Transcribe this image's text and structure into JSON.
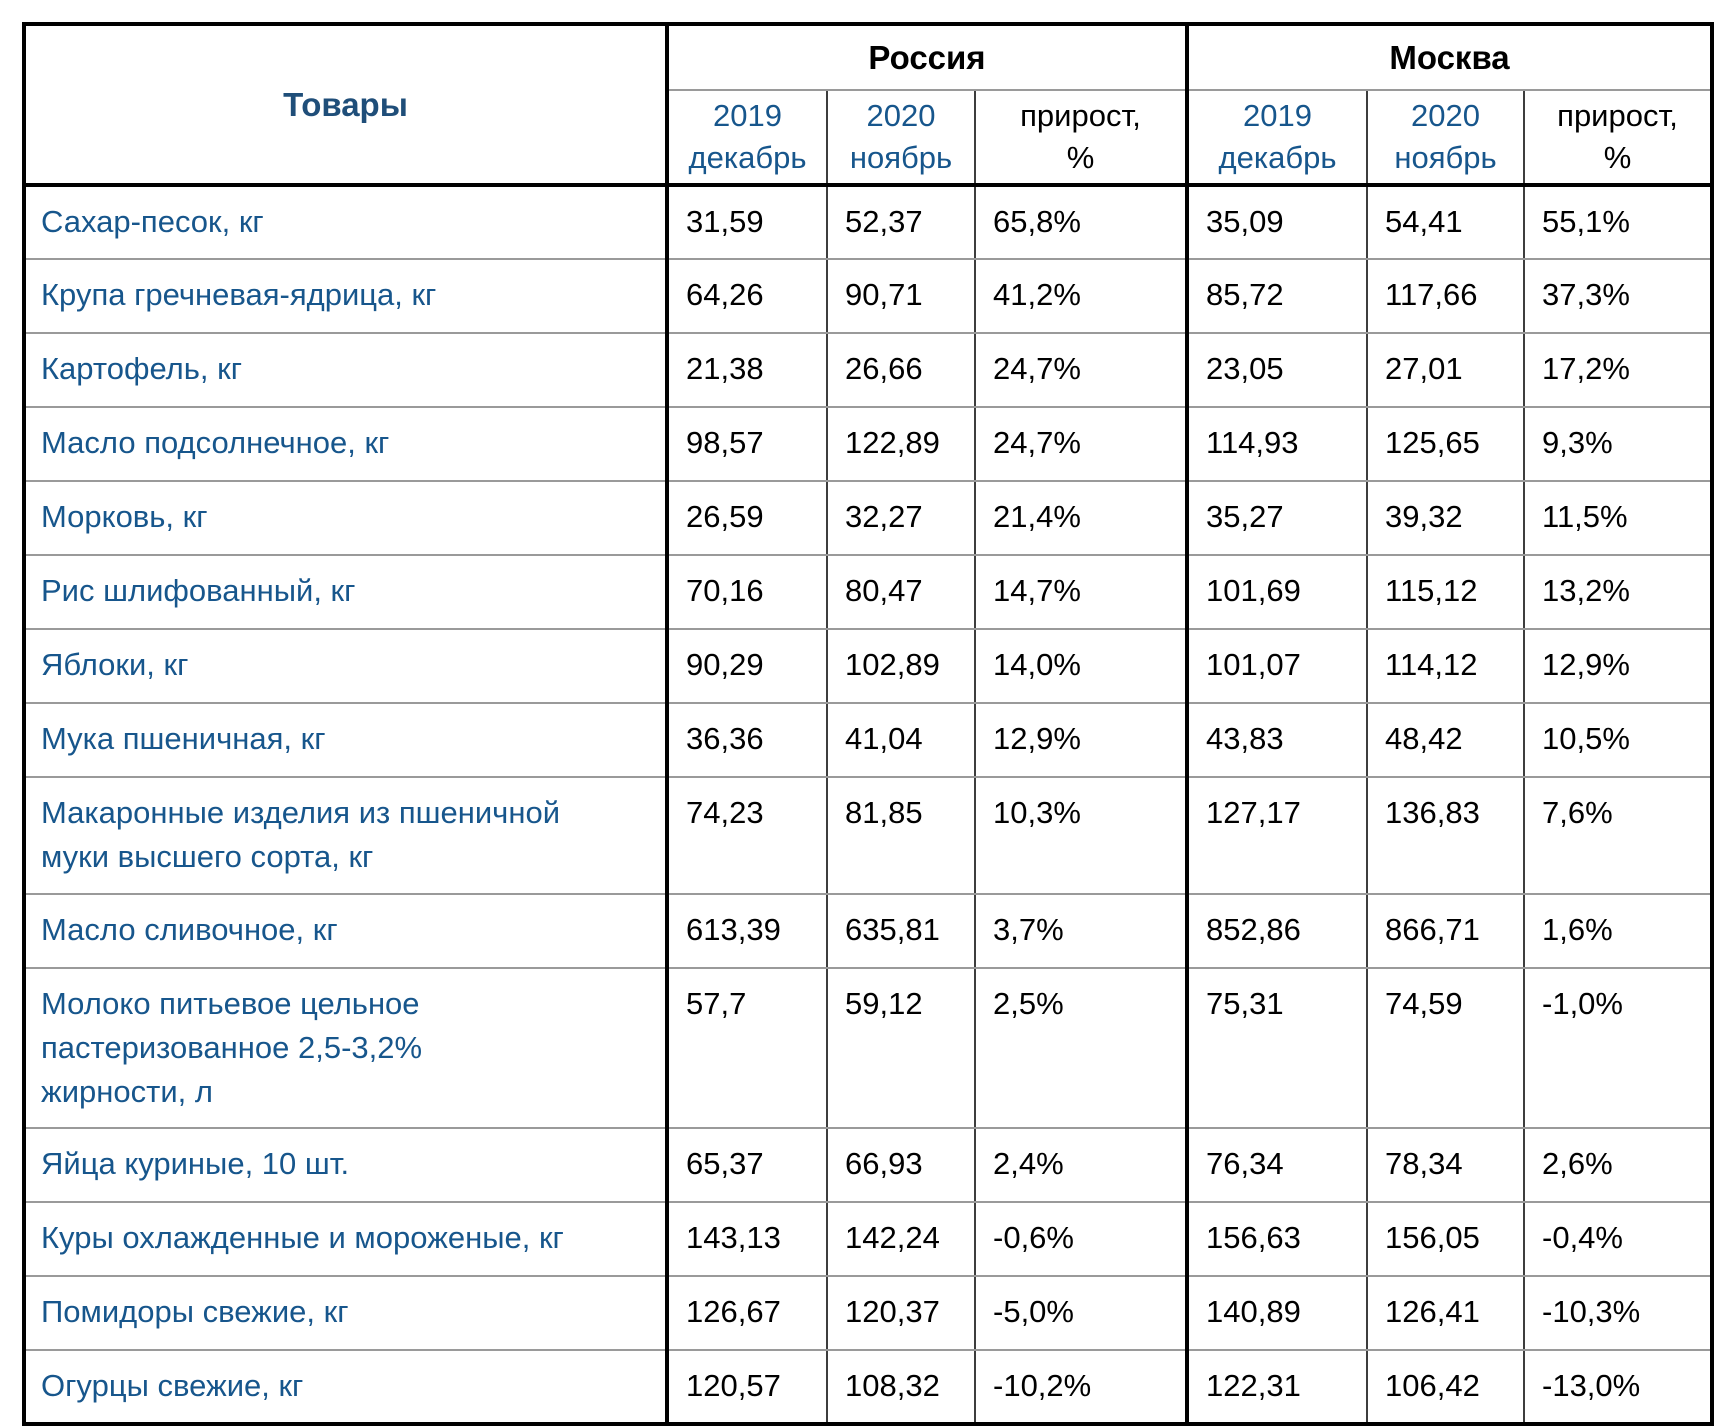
{
  "colors": {
    "title_navy": "#1f4e79",
    "product_blue": "#17568c",
    "year_blue": "#17568c",
    "text_black": "#000000",
    "thick_border": "#000000",
    "thin_border_horizontal": "#9a9a9a",
    "thin_border_vertical": "#3d3d3d",
    "background": "#ffffff"
  },
  "table": {
    "corner_header": "Товары",
    "group_headers": {
      "russia": "Россия",
      "moscow": "Москва"
    },
    "column_headers": {
      "dec2019": "2019\nдекабрь",
      "nov2020": "2020\nноябрь",
      "growth": "прирост,\n%"
    },
    "rows": [
      {
        "name": "Сахар-песок, кг",
        "ru_dec2019": "31,59",
        "ru_nov2020": "52,37",
        "ru_growth": "65,8%",
        "msk_dec2019": "35,09",
        "msk_nov2020": "54,41",
        "msk_growth": "55,1%"
      },
      {
        "name": "Крупа гречневая-ядрица, кг",
        "ru_dec2019": "64,26",
        "ru_nov2020": "90,71",
        "ru_growth": "41,2%",
        "msk_dec2019": "85,72",
        "msk_nov2020": "117,66",
        "msk_growth": "37,3%"
      },
      {
        "name": "Картофель, кг",
        "ru_dec2019": "21,38",
        "ru_nov2020": "26,66",
        "ru_growth": "24,7%",
        "msk_dec2019": "23,05",
        "msk_nov2020": "27,01",
        "msk_growth": "17,2%"
      },
      {
        "name": "Масло подсолнечное, кг",
        "ru_dec2019": "98,57",
        "ru_nov2020": "122,89",
        "ru_growth": "24,7%",
        "msk_dec2019": "114,93",
        "msk_nov2020": "125,65",
        "msk_growth": "9,3%"
      },
      {
        "name": "Морковь, кг",
        "ru_dec2019": "26,59",
        "ru_nov2020": "32,27",
        "ru_growth": "21,4%",
        "msk_dec2019": "35,27",
        "msk_nov2020": "39,32",
        "msk_growth": "11,5%"
      },
      {
        "name": "Рис шлифованный, кг",
        "ru_dec2019": "70,16",
        "ru_nov2020": "80,47",
        "ru_growth": "14,7%",
        "msk_dec2019": "101,69",
        "msk_nov2020": "115,12",
        "msk_growth": "13,2%"
      },
      {
        "name": "Яблоки, кг",
        "ru_dec2019": "90,29",
        "ru_nov2020": "102,89",
        "ru_growth": "14,0%",
        "msk_dec2019": "101,07",
        "msk_nov2020": "114,12",
        "msk_growth": "12,9%"
      },
      {
        "name": "Мука пшеничная, кг",
        "ru_dec2019": "36,36",
        "ru_nov2020": "41,04",
        "ru_growth": "12,9%",
        "msk_dec2019": "43,83",
        "msk_nov2020": "48,42",
        "msk_growth": "10,5%"
      },
      {
        "name": "Макаронные изделия из пшеничной\nмуки высшего сорта, кг",
        "ru_dec2019": "74,23",
        "ru_nov2020": "81,85",
        "ru_growth": "10,3%",
        "msk_dec2019": "127,17",
        "msk_nov2020": "136,83",
        "msk_growth": "7,6%"
      },
      {
        "name": "Масло сливочное, кг",
        "ru_dec2019": "613,39",
        "ru_nov2020": "635,81",
        "ru_growth": "3,7%",
        "msk_dec2019": "852,86",
        "msk_nov2020": "866,71",
        "msk_growth": "1,6%"
      },
      {
        "name": "Молоко питьевое цельное\nпастеризованное 2,5-3,2%\nжирности, л",
        "ru_dec2019": "57,7",
        "ru_nov2020": "59,12",
        "ru_growth": "2,5%",
        "msk_dec2019": "75,31",
        "msk_nov2020": "74,59",
        "msk_growth": "-1,0%"
      },
      {
        "name": "Яйца куриные, 10 шт.",
        "ru_dec2019": "65,37",
        "ru_nov2020": "66,93",
        "ru_growth": "2,4%",
        "msk_dec2019": "76,34",
        "msk_nov2020": "78,34",
        "msk_growth": "2,6%"
      },
      {
        "name": "Куры охлажденные и мороженые, кг",
        "ru_dec2019": "143,13",
        "ru_nov2020": "142,24",
        "ru_growth": "-0,6%",
        "msk_dec2019": "156,63",
        "msk_nov2020": "156,05",
        "msk_growth": "-0,4%"
      },
      {
        "name": "Помидоры свежие, кг",
        "ru_dec2019": "126,67",
        "ru_nov2020": "120,37",
        "ru_growth": "-5,0%",
        "msk_dec2019": "140,89",
        "msk_nov2020": "126,41",
        "msk_growth": "-10,3%"
      },
      {
        "name": "Огурцы свежие, кг",
        "ru_dec2019": "120,57",
        "ru_nov2020": "108,32",
        "ru_growth": "-10,2%",
        "msk_dec2019": "122,31",
        "msk_nov2020": "106,42",
        "msk_growth": "-13,0%"
      }
    ]
  }
}
